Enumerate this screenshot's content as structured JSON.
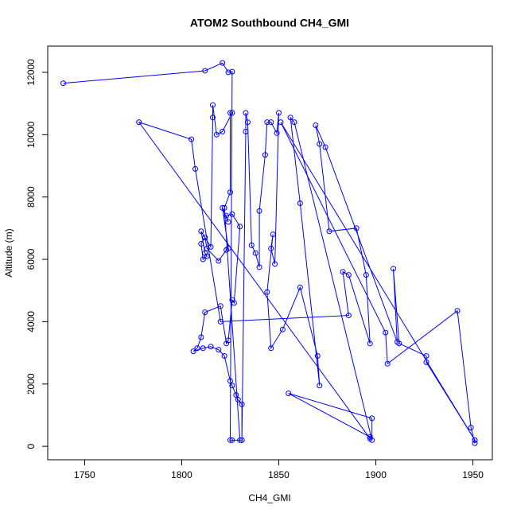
{
  "chart_data": {
    "type": "line",
    "title": "ATOM2 Southbound CH4_GMI",
    "x_label": "CH4_GMI",
    "y_label": "Altitude (m)",
    "color": "#0000ff",
    "points": true,
    "xlim": [
      1731,
      1960
    ],
    "ylim": [
      -430,
      12840
    ],
    "xticks": [
      1750,
      1800,
      1850,
      1900,
      1950
    ],
    "yticks": [
      0,
      2000,
      4000,
      6000,
      8000,
      10000,
      12000
    ],
    "x": [
      1739,
      1812,
      1821,
      1824,
      1826,
      1825,
      1826,
      1831,
      1831,
      1829,
      1828,
      1826,
      1825,
      1822,
      1819,
      1815,
      1811,
      1806,
      1808,
      1810,
      1812,
      1820,
      1823,
      1824,
      1826,
      1827,
      1830,
      1826,
      1823,
      1824,
      1821,
      1824,
      1823,
      1819,
      1813,
      1812,
      1810,
      1811,
      1813,
      1812,
      1810,
      1815,
      1816,
      1816,
      1818,
      1821,
      1826,
      1825,
      1825,
      1822,
      1830,
      1831,
      1833,
      1833,
      1834,
      1836,
      1838,
      1840,
      1840,
      1843,
      1844,
      1846,
      1849,
      1850,
      1848,
      1846,
      1847,
      1844,
      1846,
      1852,
      1861,
      1870,
      1871,
      1861,
      1856,
      1858,
      1898,
      1898,
      1855,
      1897,
      1897,
      1778,
      1805,
      1807,
      1820,
      1886,
      1883,
      1886,
      1897,
      1895,
      1890,
      1876,
      1871,
      1869,
      1874,
      1911,
      1909,
      1912,
      1926,
      1926,
      1951,
      1951,
      1949,
      1942,
      1906,
      1905,
      1851,
      1951
    ],
    "values": [
      11650,
      12050,
      12300,
      12000,
      12020,
      200,
      200,
      200,
      1350,
      1500,
      1650,
      1950,
      2100,
      2900,
      3100,
      3200,
      3150,
      3050,
      3150,
      3500,
      4300,
      4500,
      3300,
      3400,
      4700,
      4600,
      7050,
      7450,
      7400,
      7200,
      7650,
      6350,
      6300,
      5950,
      6350,
      6700,
      6500,
      6000,
      6100,
      6200,
      6900,
      6400,
      10550,
      10950,
      10000,
      10100,
      10700,
      10700,
      8150,
      7650,
      200,
      200,
      10100,
      10700,
      10400,
      6450,
      6200,
      5750,
      7550,
      9350,
      10400,
      10400,
      10050,
      10700,
      5850,
      6350,
      6800,
      4950,
      3150,
      3750,
      5100,
      2900,
      1950,
      7800,
      10550,
      10400,
      200,
      900,
      1700,
      300,
      250,
      10400,
      9850,
      8900,
      4000,
      4200,
      5600,
      5500,
      3300,
      5500,
      7000,
      6900,
      9700,
      10300,
      9600,
      3350,
      5700,
      3300,
      2900,
      2700,
      200,
      100,
      600,
      4350,
      2650,
      3650,
      10400,
      200
    ]
  }
}
